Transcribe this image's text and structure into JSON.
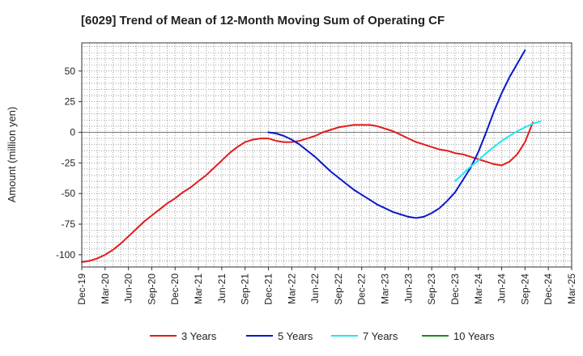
{
  "chart_data": {
    "type": "line",
    "title": "[6029]  Trend of Mean of 12-Month Moving Sum of Operating CF",
    "xlabel": "",
    "ylabel": "Amount (million yen)",
    "x_ticks": [
      "Dec-19",
      "Mar-20",
      "Jun-20",
      "Sep-20",
      "Dec-20",
      "Mar-21",
      "Jun-21",
      "Sep-21",
      "Dec-21",
      "Mar-22",
      "Jun-22",
      "Sep-22",
      "Dec-22",
      "Mar-23",
      "Jun-23",
      "Sep-23",
      "Dec-23",
      "Mar-24",
      "Jun-24",
      "Sep-24",
      "Dec-24",
      "Mar-25"
    ],
    "y_ticks": [
      "50",
      "25",
      "0",
      "-25",
      "-50",
      "-75",
      "-100"
    ],
    "ylim": [
      -110,
      73
    ],
    "grid": true,
    "legend_position": "bottom",
    "series": [
      {
        "name": "3 Years",
        "color": "#e31a1c",
        "start_index": 0,
        "values": [
          -106,
          -105,
          -103,
          -100,
          -96,
          -91,
          -85,
          -79,
          -73,
          -68,
          -63,
          -58,
          -54,
          -49,
          -45,
          -40,
          -35,
          -29,
          -23,
          -17,
          -12,
          -8,
          -6,
          -5,
          -5,
          -7,
          -8,
          -8,
          -7,
          -5,
          -3,
          0,
          2,
          4,
          5,
          6,
          6,
          6,
          5,
          3,
          1,
          -2,
          -5,
          -8,
          -10,
          -12,
          -14,
          -15,
          -17,
          -18,
          -20,
          -22,
          -24,
          -26,
          -27,
          -24,
          -18,
          -8,
          8
        ]
      },
      {
        "name": "5 Years",
        "color": "#0a18c8",
        "start_index": 24,
        "values": [
          0,
          -1,
          -3,
          -6,
          -10,
          -15,
          -20,
          -26,
          -32,
          -37,
          -42,
          -47,
          -51,
          -55,
          -59,
          -62,
          -65,
          -67,
          -69,
          -70,
          -69,
          -66,
          -62,
          -56,
          -49,
          -39,
          -29,
          -16,
          0,
          17,
          32,
          45,
          56,
          67
        ]
      },
      {
        "name": "7 Years",
        "color": "#1ee8f0",
        "start_index": 48,
        "values": [
          -40,
          -34,
          -28,
          -23,
          -17,
          -12,
          -7,
          -3,
          1,
          4,
          7,
          9
        ]
      },
      {
        "name": "10 Years",
        "color": "#1a8a1a",
        "start_index": 0,
        "values": []
      }
    ]
  }
}
